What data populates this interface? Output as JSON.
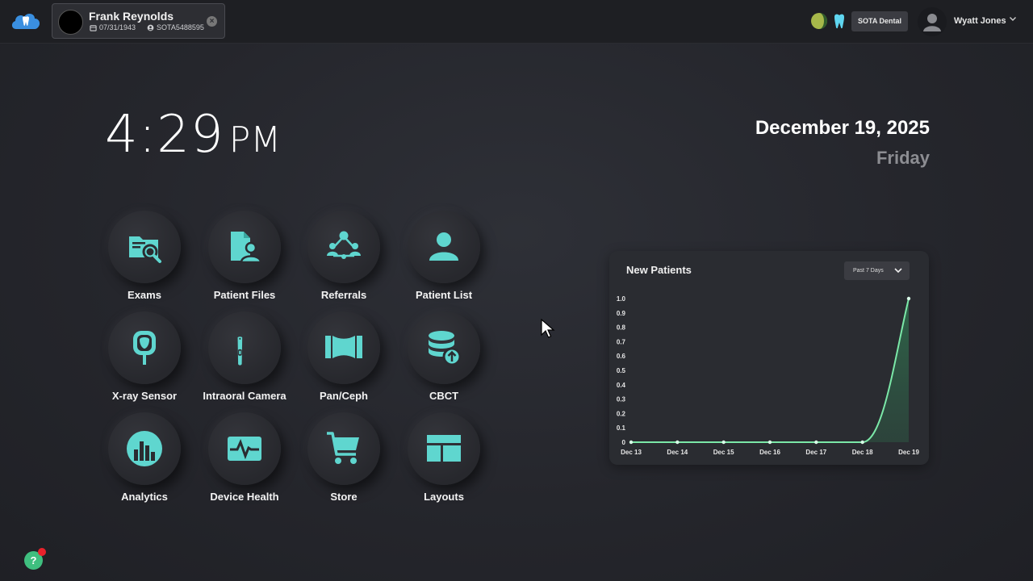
{
  "colors": {
    "accent": "#5fd6cf",
    "chart_line": "#7be8a8",
    "background": "#26272c"
  },
  "header": {
    "patient": {
      "name": "Frank Reynolds",
      "dob": "07/31/1943",
      "id": "SOTA5488595"
    },
    "org": "SOTA Dental",
    "user": {
      "name": "Wyatt Jones"
    }
  },
  "clock": {
    "time": "4:29",
    "ampm": "PM"
  },
  "date": {
    "full": "December 19, 2025",
    "day": "Friday"
  },
  "tiles": [
    {
      "label": "Exams",
      "icon": "folder-search-icon"
    },
    {
      "label": "Patient Files",
      "icon": "patient-file-icon"
    },
    {
      "label": "Referrals",
      "icon": "referrals-network-icon"
    },
    {
      "label": "Patient List",
      "icon": "person-icon"
    },
    {
      "label": "X-ray Sensor",
      "icon": "xray-sensor-icon"
    },
    {
      "label": "Intraoral Camera",
      "icon": "intraoral-camera-icon"
    },
    {
      "label": "Pan/Ceph",
      "icon": "panoramic-icon"
    },
    {
      "label": "CBCT",
      "icon": "database-upload-icon"
    },
    {
      "label": "Analytics",
      "icon": "bar-chart-icon"
    },
    {
      "label": "Device Health",
      "icon": "device-health-icon"
    },
    {
      "label": "Store",
      "icon": "cart-icon"
    },
    {
      "label": "Layouts",
      "icon": "layout-icon"
    }
  ],
  "chart": {
    "title": "New Patients",
    "range": "Past 7 Days"
  },
  "chart_data": {
    "type": "area",
    "title": "New Patients",
    "categories": [
      "Dec 13",
      "Dec 14",
      "Dec 15",
      "Dec 16",
      "Dec 17",
      "Dec 18",
      "Dec 19"
    ],
    "values": [
      0,
      0,
      0,
      0,
      0,
      0,
      1.0
    ],
    "yticks": [
      "0",
      "0.1",
      "0.2",
      "0.3",
      "0.4",
      "0.5",
      "0.6",
      "0.7",
      "0.8",
      "0.9",
      "1.0"
    ],
    "ylim": [
      0,
      1.0
    ],
    "grid": false,
    "legend": "none"
  },
  "help": {
    "label": "?"
  }
}
